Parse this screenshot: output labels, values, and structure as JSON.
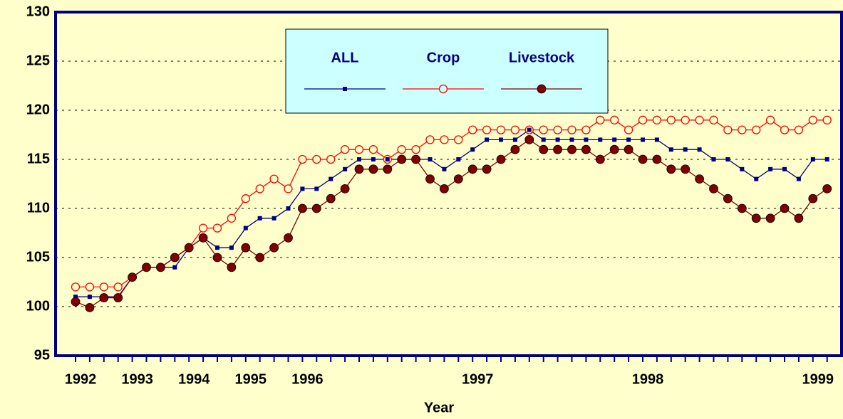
{
  "chart_data": {
    "type": "line",
    "x_label": "Year",
    "categories": [
      "1992",
      null,
      null,
      null,
      "1993",
      null,
      null,
      null,
      "1994",
      null,
      null,
      null,
      "1995",
      null,
      null,
      null,
      "1996",
      null,
      null,
      null,
      null,
      null,
      null,
      null,
      null,
      null,
      null,
      null,
      "1997",
      null,
      null,
      null,
      null,
      null,
      null,
      null,
      null,
      null,
      null,
      null,
      "1998",
      null,
      null,
      null,
      null,
      null,
      null,
      null,
      null,
      null,
      null,
      null,
      "1999",
      null
    ],
    "series": [
      {
        "name": "ALL",
        "color": "#000080",
        "marker": "square",
        "values": [
          101,
          101,
          101,
          101,
          103,
          104,
          104,
          104,
          106,
          107,
          106,
          106,
          108,
          109,
          109,
          110,
          112,
          112,
          113,
          114,
          115,
          115,
          115,
          115,
          115,
          115,
          114,
          115,
          116,
          117,
          117,
          117,
          118,
          117,
          117,
          117,
          117,
          117,
          117,
          117,
          117,
          117,
          116,
          116,
          116,
          115,
          115,
          114,
          113,
          114,
          114,
          113,
          115,
          115
        ]
      },
      {
        "name": "Crop",
        "color": "#ff0000",
        "marker": "open-circle",
        "values": [
          102,
          102,
          102,
          102,
          103,
          104,
          104,
          105,
          106,
          108,
          108,
          109,
          111,
          112,
          113,
          112,
          115,
          115,
          115,
          116,
          116,
          116,
          115,
          116,
          116,
          117,
          117,
          117,
          118,
          118,
          118,
          118,
          118,
          118,
          118,
          118,
          118,
          119,
          119,
          118,
          119,
          119,
          119,
          119,
          119,
          119,
          118,
          118,
          118,
          119,
          118,
          118,
          119,
          119
        ]
      },
      {
        "name": "Livestock",
        "color": "#800000",
        "marker": "filled-circle",
        "values": [
          100.5,
          99.9,
          100.9,
          100.9,
          103,
          104,
          104,
          105,
          106,
          107,
          105,
          104,
          106,
          105,
          106,
          107,
          110,
          110,
          111,
          112,
          114,
          114,
          114,
          115,
          115,
          113,
          112,
          113,
          114,
          114,
          115,
          116,
          117,
          116,
          116,
          116,
          116,
          115,
          116,
          116,
          115,
          115,
          114,
          114,
          113,
          112,
          111,
          110,
          109,
          109,
          110,
          109,
          111,
          112
        ]
      }
    ],
    "ylim": [
      95,
      130
    ],
    "yticks": [
      95,
      100,
      105,
      110,
      115,
      120,
      125,
      130
    ],
    "grid": true
  }
}
